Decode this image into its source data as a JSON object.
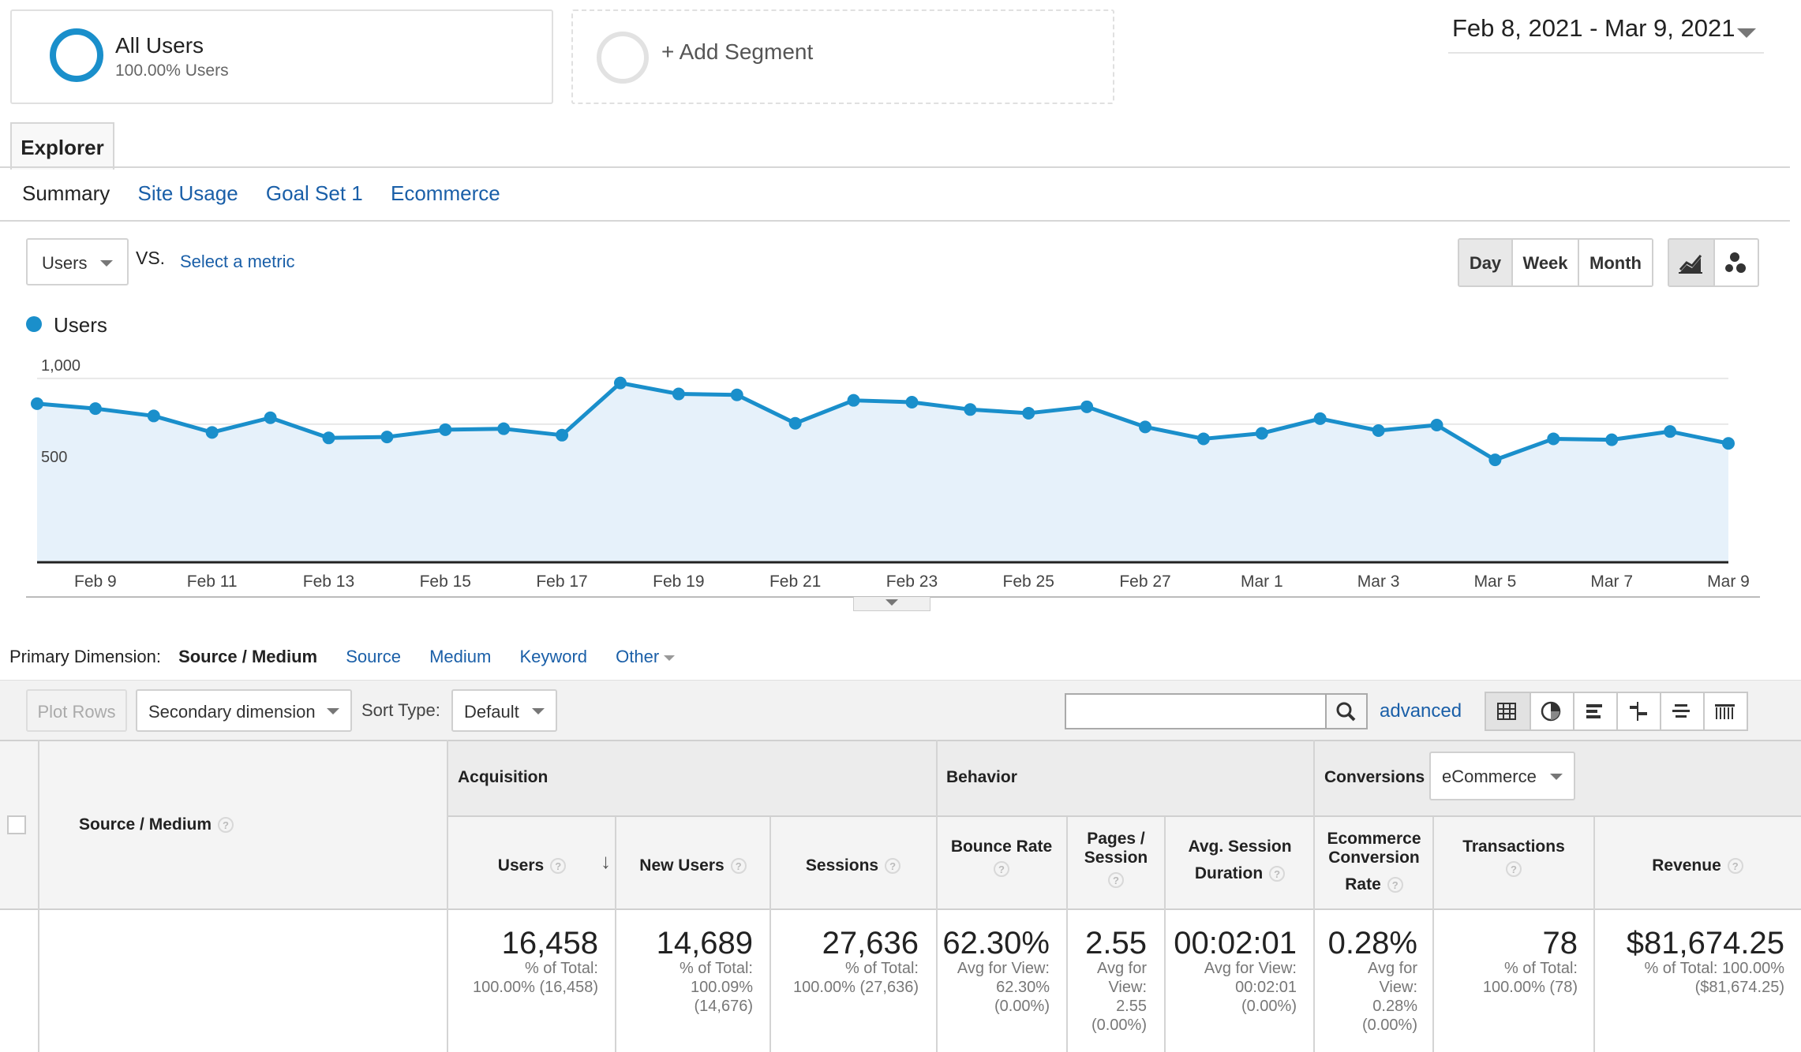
{
  "segments": {
    "all_users": {
      "title": "All Users",
      "subtitle": "100.00% Users"
    },
    "add_segment": {
      "label": "+ Add Segment"
    }
  },
  "date_range": "Feb 8, 2021 - Mar 9, 2021",
  "tabs": {
    "explorer": "Explorer"
  },
  "subtabs": [
    "Summary",
    "Site Usage",
    "Goal Set 1",
    "Ecommerce"
  ],
  "metric": {
    "selected": "Users",
    "vs": "VS.",
    "select_metric": "Select a metric"
  },
  "granularity": {
    "day": "Day",
    "week": "Week",
    "month": "Month",
    "active": "Day"
  },
  "colors": {
    "accent": "#1a8fcb",
    "link": "#1a5fa8",
    "area_fill": "#e6f1fa"
  },
  "chart_data": {
    "type": "area",
    "series": [
      {
        "name": "Users",
        "x": [
          "Feb 8",
          "Feb 9",
          "Feb 10",
          "Feb 11",
          "Feb 12",
          "Feb 13",
          "Feb 14",
          "Feb 15",
          "Feb 16",
          "Feb 17",
          "Feb 18",
          "Feb 19",
          "Feb 20",
          "Feb 21",
          "Feb 22",
          "Feb 23",
          "Feb 24",
          "Feb 25",
          "Feb 26",
          "Feb 27",
          "Feb 28",
          "Mar 1",
          "Mar 2",
          "Mar 3",
          "Mar 4",
          "Mar 5",
          "Mar 6",
          "Mar 7",
          "Mar 8",
          "Mar 9"
        ],
        "values": [
          862,
          835,
          795,
          705,
          785,
          675,
          680,
          720,
          725,
          690,
          975,
          915,
          910,
          755,
          880,
          870,
          830,
          810,
          845,
          735,
          670,
          700,
          780,
          715,
          745,
          555,
          670,
          665,
          710,
          645
        ]
      }
    ],
    "x_tick_labels": [
      "Feb 9",
      "Feb 11",
      "Feb 13",
      "Feb 15",
      "Feb 17",
      "Feb 19",
      "Feb 21",
      "Feb 23",
      "Feb 25",
      "Feb 27",
      "Mar 1",
      "Mar 3",
      "Mar 5",
      "Mar 7",
      "Mar 9"
    ],
    "y_ticks": [
      1000,
      500
    ],
    "y_tick_labels": [
      "1,000",
      "500"
    ],
    "ylim": [
      0,
      1000
    ],
    "grid": true,
    "legend": "top-left"
  },
  "primary_dimension": {
    "label": "Primary Dimension:",
    "current": "Source / Medium",
    "options": [
      "Source",
      "Medium",
      "Keyword",
      "Other"
    ]
  },
  "toolbar": {
    "plot_rows": "Plot Rows",
    "secondary_dimension": "Secondary dimension",
    "sort_type_label": "Sort Type:",
    "sort_type": "Default",
    "search_value": "",
    "advanced": "advanced"
  },
  "table": {
    "dimension_header": "Source / Medium",
    "groups": {
      "acquisition": "Acquisition",
      "behavior": "Behavior",
      "conversions": "Conversions"
    },
    "conversions_select": "eCommerce",
    "columns": {
      "users": "Users",
      "new_users": "New Users",
      "sessions": "Sessions",
      "bounce_rate": "Bounce Rate",
      "pages_session": [
        "Pages /",
        "Session"
      ],
      "avg_session": [
        "Avg. Session",
        "Duration"
      ],
      "ecom_rate": [
        "Ecommerce",
        "Conversion",
        "Rate"
      ],
      "transactions": "Transactions",
      "revenue": "Revenue"
    },
    "totals": {
      "users": {
        "value": "16,458",
        "sub": [
          "% of Total:",
          "100.00% (16,458)"
        ]
      },
      "new_users": {
        "value": "14,689",
        "sub": [
          "% of Total:",
          "100.09%",
          "(14,676)"
        ]
      },
      "sessions": {
        "value": "27,636",
        "sub": [
          "% of Total:",
          "100.00% (27,636)"
        ]
      },
      "bounce_rate": {
        "value": "62.30%",
        "sub": [
          "Avg for View:",
          "62.30%",
          "(0.00%)"
        ]
      },
      "pages_session": {
        "value": "2.55",
        "sub": [
          "Avg for",
          "View:",
          "2.55",
          "(0.00%)"
        ]
      },
      "avg_session": {
        "value": "00:02:01",
        "sub": [
          "Avg for View:",
          "00:02:01",
          "(0.00%)"
        ]
      },
      "ecom_rate": {
        "value": "0.28%",
        "sub": [
          "Avg for",
          "View:",
          "0.28%",
          "(0.00%)"
        ]
      },
      "transactions": {
        "value": "78",
        "sub": [
          "% of Total:",
          "100.00% (78)"
        ]
      },
      "revenue": {
        "value": "$81,674.25",
        "sub": [
          "% of Total: 100.00%",
          "($81,674.25)"
        ]
      }
    }
  }
}
